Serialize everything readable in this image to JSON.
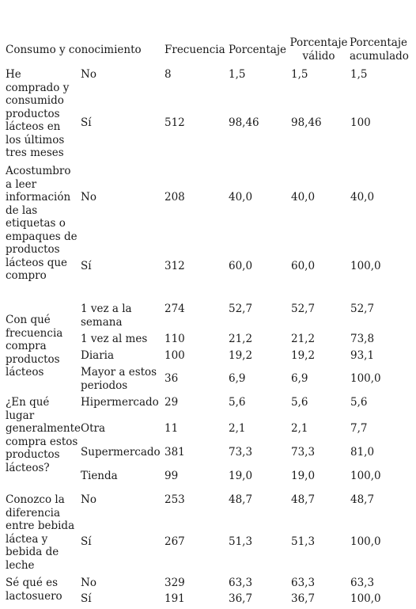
{
  "header": {
    "col1": "Consumo y conocimiento",
    "col2": "Frecuencia",
    "col3": "Porcentaje",
    "col4": "Porcentaje válido",
    "col5": "Porcentaje acumulado"
  },
  "groups": [
    {
      "label": "He comprado y consumido productos lácteos en los últimos tres meses",
      "rows": [
        {
          "option": "No",
          "frecuencia": "8",
          "porcentaje": "1,5",
          "valido": "1,5",
          "acumulado": "1,5"
        },
        {
          "option": "Sí",
          "frecuencia": "512",
          "porcentaje": "98,46",
          "valido": "98,46",
          "acumulado": "100"
        }
      ]
    },
    {
      "label": "Acostumbro a leer información de las etiquetas o empaques de productos lácteos que compro",
      "rows": [
        {
          "option": "No",
          "frecuencia": "208",
          "porcentaje": "40,0",
          "valido": "40,0",
          "acumulado": "40,0"
        },
        {
          "option": "Sí",
          "frecuencia": "312",
          "porcentaje": "60,0",
          "valido": "60,0",
          "acumulado": "100,0"
        }
      ]
    },
    {
      "label": "Con qué frecuencia compra productos lácteos",
      "rows": [
        {
          "option": "1 vez a la semana",
          "frecuencia": "274",
          "porcentaje": "52,7",
          "valido": "52,7",
          "acumulado": "52,7"
        },
        {
          "option": "1 vez al mes",
          "frecuencia": "110",
          "porcentaje": "21,2",
          "valido": "21,2",
          "acumulado": "73,8"
        },
        {
          "option": "Diaria",
          "frecuencia": "100",
          "porcentaje": "19,2",
          "valido": "19,2",
          "acumulado": "93,1"
        },
        {
          "option": "Mayor a estos periodos",
          "frecuencia": "36",
          "porcentaje": "6,9",
          "valido": "6,9",
          "acumulado": "100,0"
        }
      ]
    },
    {
      "label": "¿En qué lugar generalmente compra estos productos lácteos?",
      "rows": [
        {
          "option": "Hipermercado",
          "frecuencia": "29",
          "porcentaje": "5,6",
          "valido": "5,6",
          "acumulado": "5,6"
        },
        {
          "option": "Otra",
          "frecuencia": "11",
          "porcentaje": "2,1",
          "valido": "2,1",
          "acumulado": "7,7"
        },
        {
          "option": "Supermercado",
          "frecuencia": "381",
          "porcentaje": "73,3",
          "valido": "73,3",
          "acumulado": "81,0"
        },
        {
          "option": "Tienda",
          "frecuencia": "99",
          "porcentaje": "19,0",
          "valido": "19,0",
          "acumulado": "100,0"
        }
      ]
    },
    {
      "label": "Conozco la diferencia entre bebida láctea y bebida de leche",
      "rows": [
        {
          "option": "No",
          "frecuencia": "253",
          "porcentaje": "48,7",
          "valido": "48,7",
          "acumulado": "48,7"
        },
        {
          "option": "Sí",
          "frecuencia": "267",
          "porcentaje": "51,3",
          "valido": "51,3",
          "acumulado": "100,0"
        }
      ]
    },
    {
      "label": "Sé qué es lactosuero",
      "rows": [
        {
          "option": "No",
          "frecuencia": "329",
          "porcentaje": "63,3",
          "valido": "63,3",
          "acumulado": "63,3"
        },
        {
          "option": "Sí",
          "frecuencia": "191",
          "porcentaje": "36,7",
          "valido": "36,7",
          "acumulado": "100,0"
        }
      ]
    }
  ]
}
